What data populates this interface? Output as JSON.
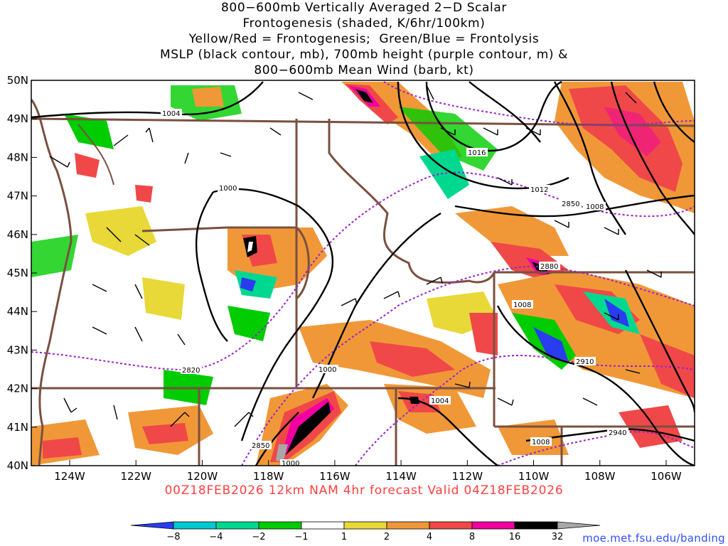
{
  "title_lines": [
    "800−600mb Vertically Averaged 2−D Scalar",
    "Frontogenesis (shaded, K/6hr/100km)",
    "Yellow/Red = Frontogenesis;  Green/Blue = Frontolysis",
    "MSLP (black contour, mb), 700mb height (purple contour, m) &",
    "800−600mb Mean Wind (barb, kt)"
  ],
  "axes": {
    "lon_labels": [
      "124W",
      "122W",
      "120W",
      "118W",
      "116W",
      "114W",
      "112W",
      "110W",
      "108W",
      "106W"
    ],
    "lat_labels": [
      "40N",
      "41N",
      "42N",
      "43N",
      "44N",
      "45N",
      "46N",
      "47N",
      "48N",
      "49N",
      "50N"
    ]
  },
  "contour_labels": {
    "mslp": [
      "1004",
      "1016",
      "1000",
      "1012",
      "1008",
      "1008",
      "1000",
      "1004",
      "1008",
      "1000"
    ],
    "height700": [
      "2850",
      "2880",
      "2910",
      "2820",
      "2850",
      "2940"
    ]
  },
  "valid_text": "00Z18FEB2026  12km NAM 4hr forecast Valid 04Z18FEB2026",
  "colorbar": {
    "labels": [
      "−8",
      "−4",
      "−2",
      "−1",
      "1",
      "2",
      "4",
      "8",
      "16",
      "32"
    ],
    "colors": [
      "#2a3cf0",
      "#00c8d0",
      "#00d890",
      "#00cc00",
      "#ffffff",
      "#e8d838",
      "#f09838",
      "#f04848",
      "#f000a0",
      "#000000",
      "#a8a8a8"
    ]
  },
  "credit": "moe.met.fsu.edu/banding",
  "colors": {
    "mslp": "#000000",
    "height700": "#9922cc",
    "borders": "#7a5040",
    "valid": "#ff4040",
    "credit": "#3050ff"
  }
}
